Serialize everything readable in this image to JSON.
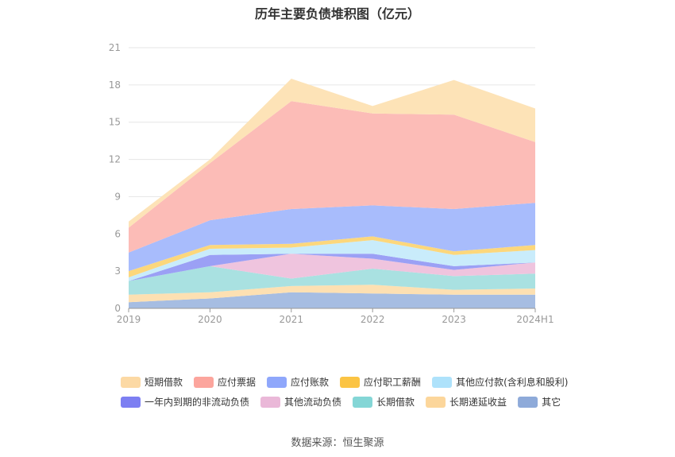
{
  "source": "数据来源：恒生聚源",
  "chart_data": {
    "type": "area",
    "stacked": true,
    "title": "历年主要负债堆积图（亿元）",
    "categories": [
      "2019",
      "2020",
      "2021",
      "2022",
      "2023",
      "2024H1"
    ],
    "ylim": [
      0,
      21
    ],
    "yticks": [
      "0",
      "3",
      "6",
      "9",
      "12",
      "15",
      "18",
      "21"
    ],
    "grid": true,
    "legend_position": "bottom",
    "series": [
      {
        "name": "其它",
        "color": "#a6bde2",
        "values": [
          0.5,
          0.8,
          1.3,
          1.2,
          1.1,
          1.1
        ]
      },
      {
        "name": "长期递延收益",
        "color": "#fde0b2",
        "values": [
          0.6,
          0.5,
          0.5,
          0.7,
          0.4,
          0.5
        ]
      },
      {
        "name": "长期借款",
        "color": "#a9e1e1",
        "values": [
          1.1,
          2.1,
          0.6,
          1.3,
          1.1,
          1.2
        ]
      },
      {
        "name": "其他流动负债",
        "color": "#efc4de",
        "values": [
          0.0,
          0.0,
          2.0,
          0.8,
          0.5,
          0.9
        ]
      },
      {
        "name": "一年内到期的非流动负债",
        "color": "#9ba0f5",
        "values": [
          0.0,
          0.9,
          0.0,
          0.4,
          0.3,
          0.0
        ]
      },
      {
        "name": "其他应付款(含利息和股利)",
        "color": "#c9ecfb",
        "values": [
          0.3,
          0.5,
          0.5,
          1.1,
          0.9,
          1.0
        ]
      },
      {
        "name": "应付职工薪酬",
        "color": "#fcd77c",
        "values": [
          0.5,
          0.3,
          0.3,
          0.3,
          0.3,
          0.4
        ]
      },
      {
        "name": "应付账款",
        "color": "#a8bcfc",
        "values": [
          1.5,
          2.0,
          2.8,
          2.5,
          3.4,
          3.4
        ]
      },
      {
        "name": "应付票据",
        "color": "#fcbcb7",
        "values": [
          2.0,
          4.6,
          8.7,
          7.4,
          7.6,
          4.9
        ]
      },
      {
        "name": "短期借款",
        "color": "#fde3b7",
        "values": [
          0.5,
          0.3,
          1.8,
          0.6,
          2.8,
          2.7
        ]
      }
    ],
    "legend": [
      {
        "name": "短期借款",
        "color": "#fcd9a4"
      },
      {
        "name": "应付票据",
        "color": "#fca59d"
      },
      {
        "name": "应付账款",
        "color": "#8fa7fb"
      },
      {
        "name": "应付职工薪酬",
        "color": "#fbc444"
      },
      {
        "name": "其他应付款(含利息和股利)",
        "color": "#aee2fb"
      },
      {
        "name": "一年内到期的非流动负债",
        "color": "#7d7ff2"
      },
      {
        "name": "其他流动负债",
        "color": "#eab8d8"
      },
      {
        "name": "长期借款",
        "color": "#84d6d6"
      },
      {
        "name": "长期递延收益",
        "color": "#fcd69b"
      },
      {
        "name": "其它",
        "color": "#8eaad9"
      }
    ]
  }
}
